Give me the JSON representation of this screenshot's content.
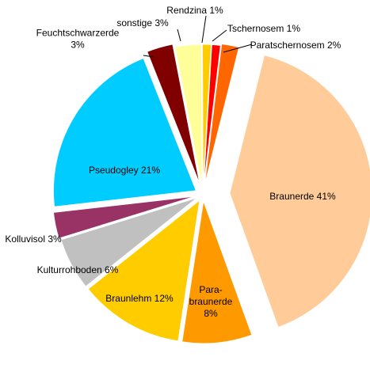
{
  "chart_data": {
    "type": "pie",
    "title": "",
    "slices": [
      {
        "key": "braunerde",
        "label": [
          "Braunerde 41%"
        ],
        "value": 41,
        "color": "#FFCC99",
        "exploded": true
      },
      {
        "key": "parabraunerde",
        "label": [
          "Para-",
          "braunerde",
          "8%"
        ],
        "value": 8,
        "color": "#FF9900",
        "exploded": true
      },
      {
        "key": "braunlehm",
        "label": [
          "Braunlehm 12%"
        ],
        "value": 12,
        "color": "#FFCC00",
        "exploded": true
      },
      {
        "key": "kulturrohboden",
        "label": [
          "Kulturrohboden 6%"
        ],
        "value": 6,
        "color": "#C0C0C0",
        "exploded": true
      },
      {
        "key": "kolluvisol",
        "label": [
          "Kolluvisol 3%"
        ],
        "value": 3,
        "color": "#993366",
        "exploded": true
      },
      {
        "key": "pseudogley",
        "label": [
          "Pseudogley 21%"
        ],
        "value": 21,
        "color": "#00CCFF",
        "exploded": true
      },
      {
        "key": "feuchtschwarzerde",
        "label": [
          "Feuchtschwarzerde",
          "3%"
        ],
        "value": 3,
        "color": "#800000",
        "exploded": true
      },
      {
        "key": "sonstige",
        "label": [
          "sonstige 3%"
        ],
        "value": 3,
        "color": "#FFFF99",
        "exploded": true
      },
      {
        "key": "rendzina",
        "label": [
          "Rendzina 1%"
        ],
        "value": 1,
        "color": "#FFCC00",
        "exploded": true
      },
      {
        "key": "tschernosem",
        "label": [
          "Tschernosem 1%"
        ],
        "value": 1,
        "color": "#FF0000",
        "exploded": true
      },
      {
        "key": "paratschernosem",
        "label": [
          "Paratschernosem 2%"
        ],
        "value": 2,
        "color": "#FF6600",
        "exploded": true
      }
    ],
    "legend": "none",
    "labels": "outside-with-leader-lines-for-small-slices"
  }
}
